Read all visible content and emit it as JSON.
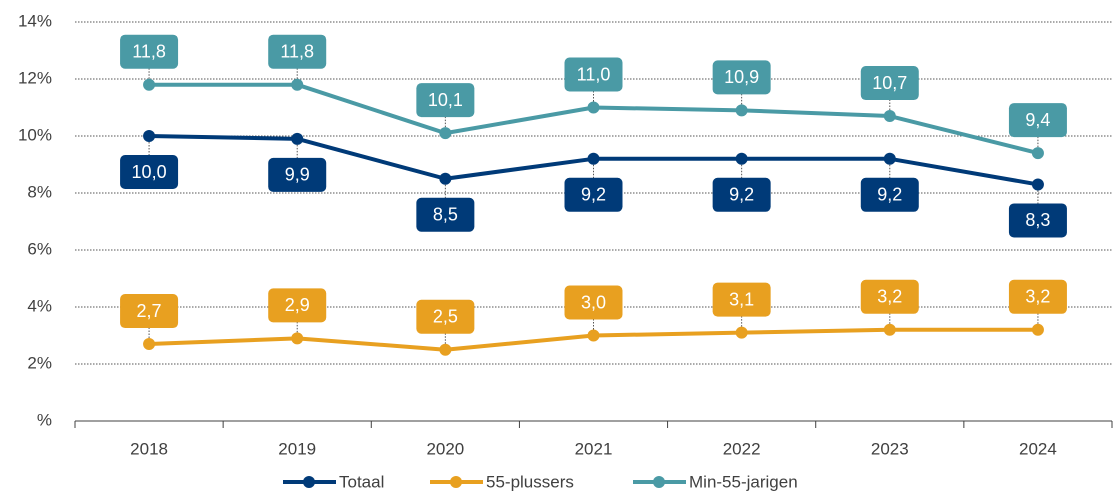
{
  "chart_data": {
    "type": "line",
    "categories": [
      "2018",
      "2019",
      "2020",
      "2021",
      "2022",
      "2023",
      "2024"
    ],
    "series": [
      {
        "name": "Totaal",
        "color": "#003a78",
        "values": [
          10.0,
          9.9,
          8.5,
          9.2,
          9.2,
          9.2,
          8.3
        ],
        "value_labels": [
          "10,0",
          "9,9",
          "8,5",
          "9,2",
          "9,2",
          "9,2",
          "8,3"
        ]
      },
      {
        "name": "55-plussers",
        "color": "#e8a020",
        "values": [
          2.7,
          2.9,
          2.5,
          3.0,
          3.1,
          3.2,
          3.2
        ],
        "value_labels": [
          "2,7",
          "2,9",
          "2,5",
          "3,0",
          "3,1",
          "3,2",
          "3,2"
        ]
      },
      {
        "name": "Min-55-jarigen",
        "color": "#4a9aa5",
        "values": [
          11.8,
          11.8,
          10.1,
          11.0,
          10.9,
          10.7,
          9.4
        ],
        "value_labels": [
          "11,8",
          "11,8",
          "10,1",
          "11,0",
          "10,9",
          "10,7",
          "9,4"
        ]
      }
    ],
    "ylim": [
      0,
      14
    ],
    "yticks": [
      {
        "value": 0,
        "label": "%"
      },
      {
        "value": 2,
        "label": "2%"
      },
      {
        "value": 4,
        "label": "4%"
      },
      {
        "value": 6,
        "label": "6%"
      },
      {
        "value": 8,
        "label": "8%"
      },
      {
        "value": 10,
        "label": "10%"
      },
      {
        "value": 12,
        "label": "12%"
      },
      {
        "value": 14,
        "label": "14%"
      }
    ],
    "grid": true,
    "legend": "bottom"
  }
}
